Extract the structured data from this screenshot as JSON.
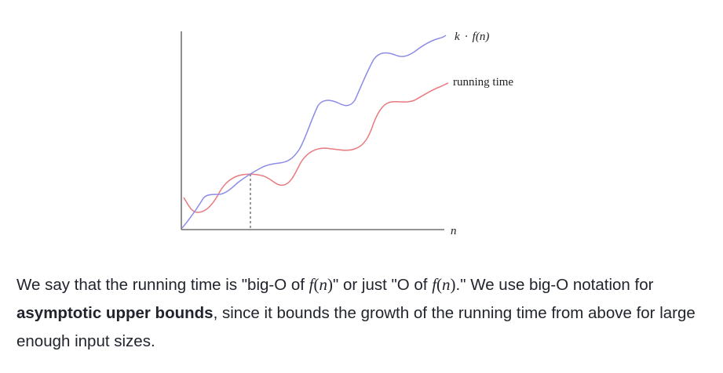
{
  "figure": {
    "label_upper_curve_k": "k",
    "label_upper_curve_dot": "·",
    "label_upper_curve_f": "f",
    "label_upper_curve_n": "(n)",
    "label_running_time": "running time",
    "label_x_axis": "n",
    "colors": {
      "upper_bound_curve": "#8c8ce8",
      "running_time_curve": "#e87a80",
      "axes": "#555555",
      "marker": "#555555"
    }
  },
  "paragraph": {
    "part1": "We say that the running time is \"big-O of ",
    "math1_f": "f",
    "math1_open": "(",
    "math1_n": "n",
    "math1_close": ")",
    "part2": "\" or just \"O of ",
    "math2_f": "f",
    "math2_open": "(",
    "math2_n": "n",
    "math2_close": ")",
    "part3": ".\" We use big-O notation for ",
    "bold": "asymptotic upper bounds",
    "part4": ", since it bounds the growth of the running time from above for large enough input sizes."
  }
}
